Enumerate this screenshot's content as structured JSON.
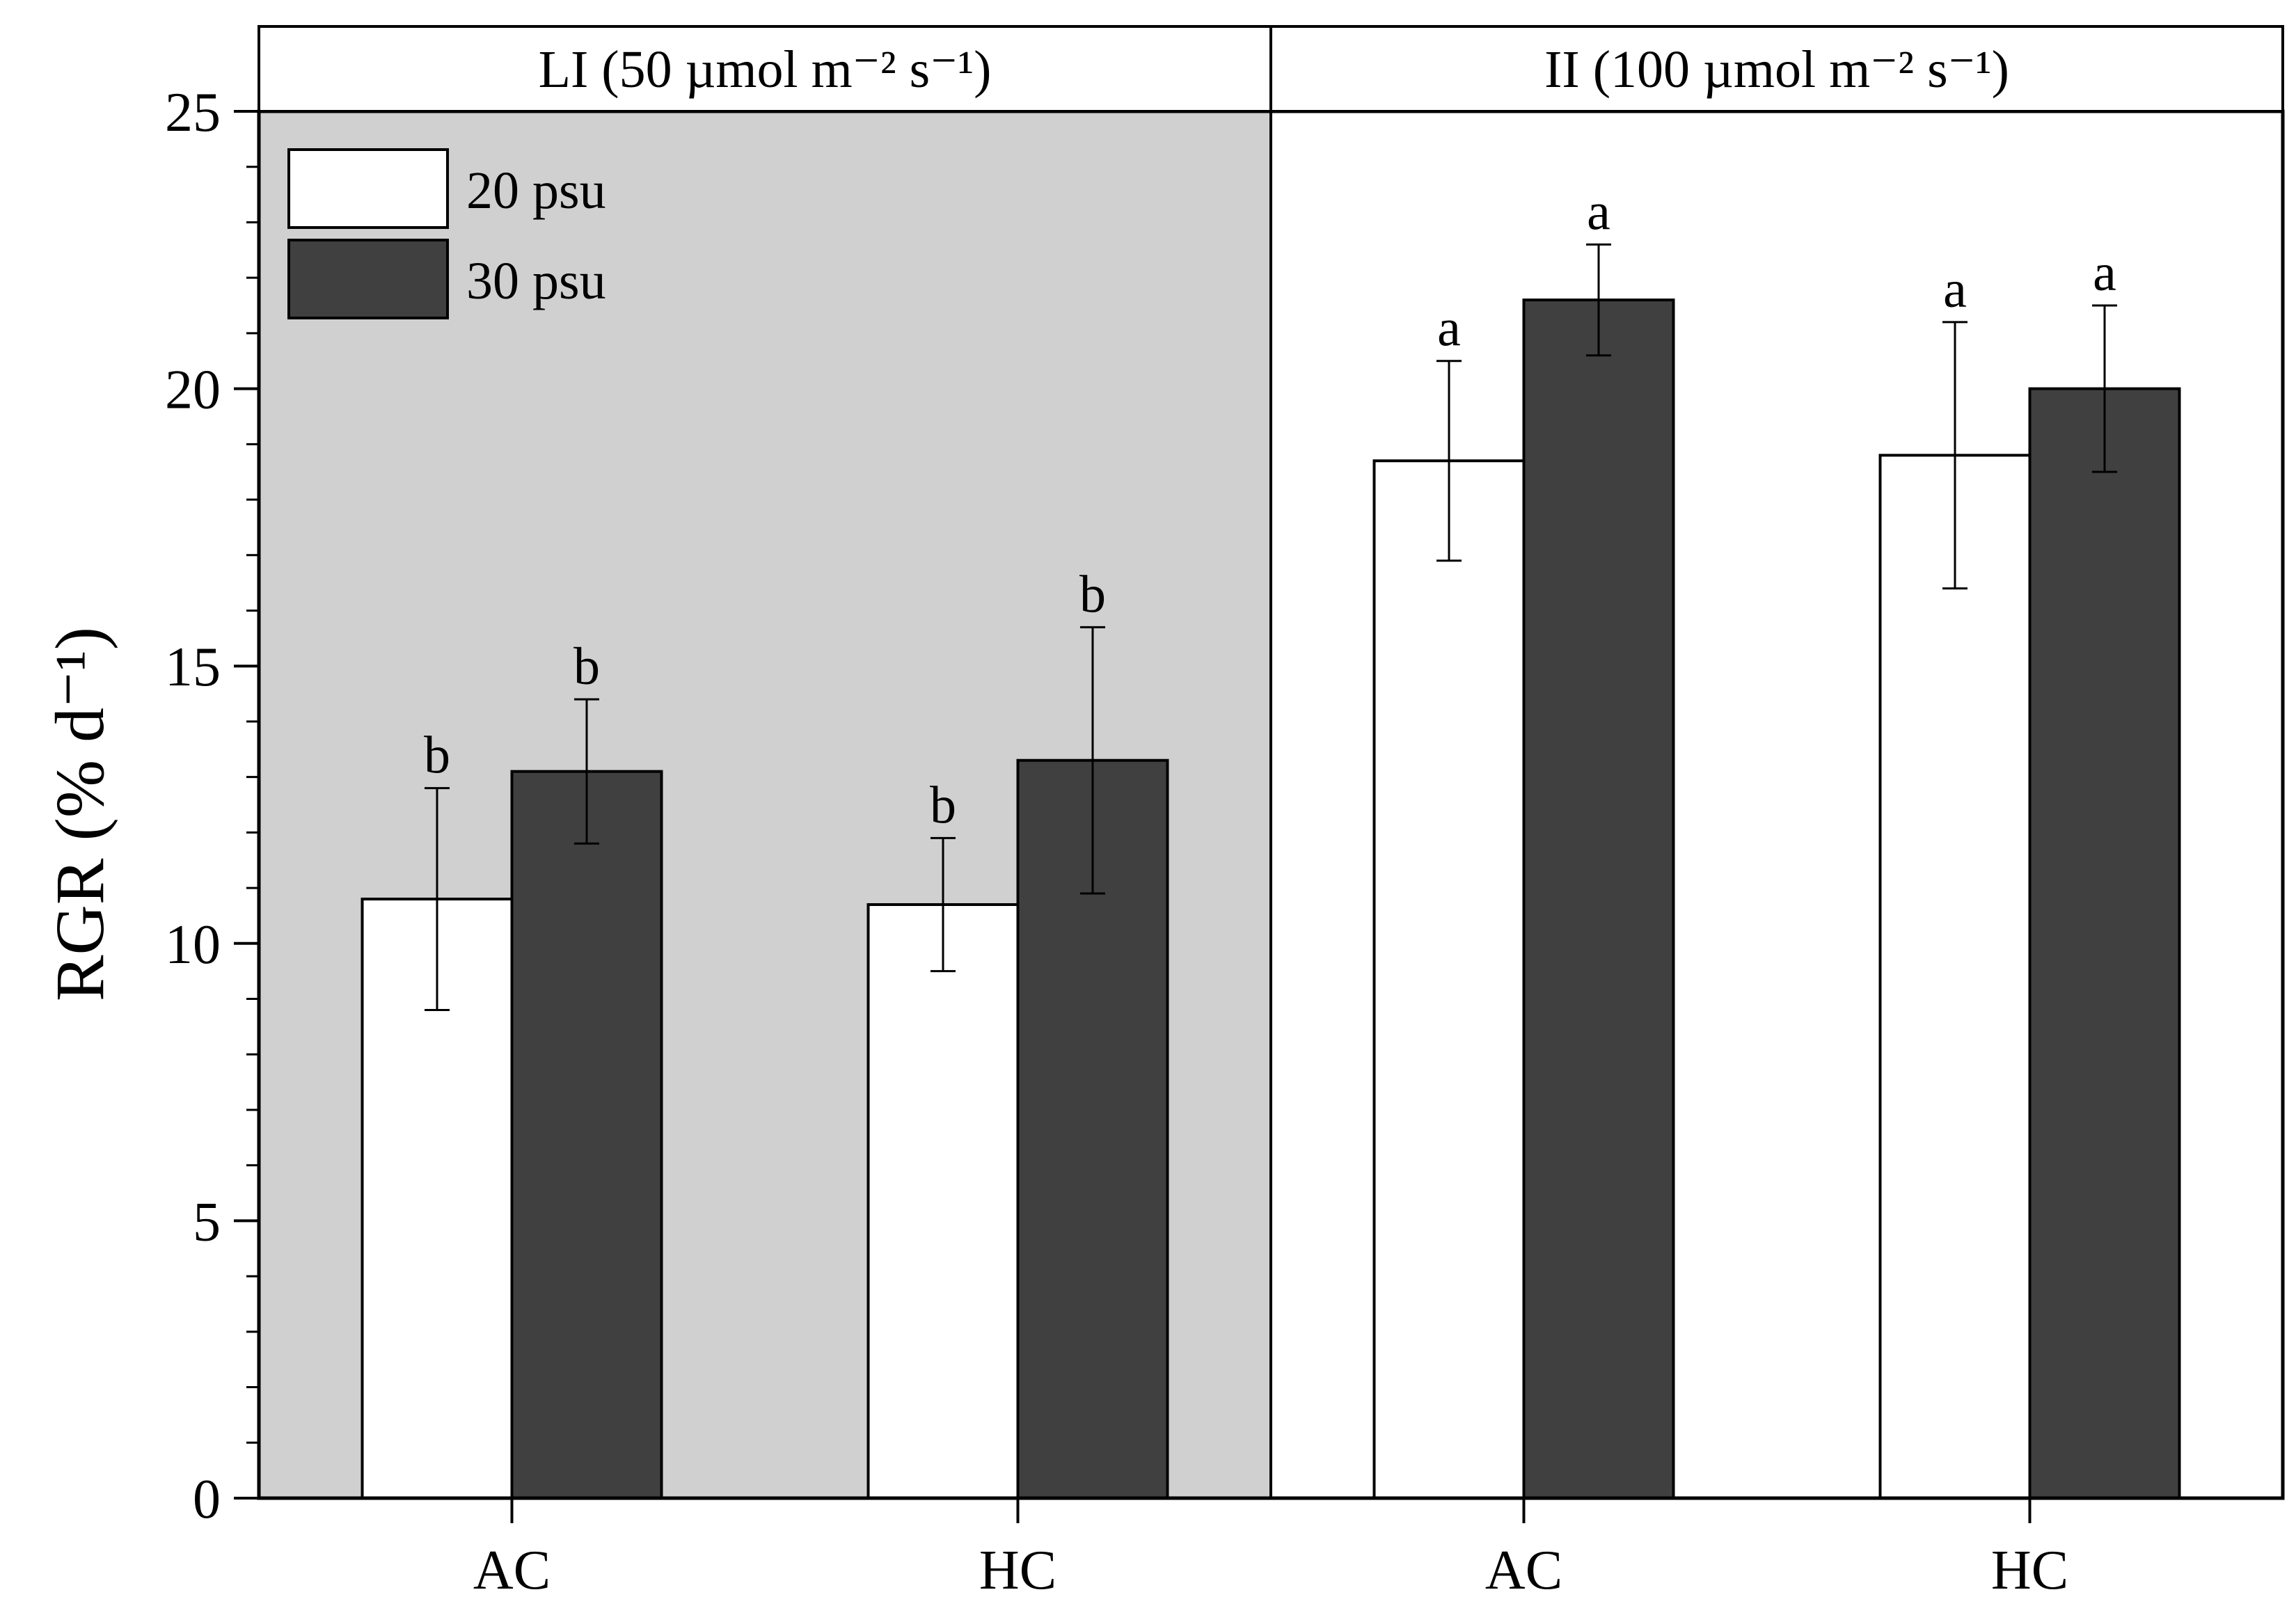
{
  "chart_data": {
    "type": "bar",
    "ylabel": "RGR (% d⁻¹)",
    "ylim": [
      0,
      25
    ],
    "yticks": [
      0,
      5,
      10,
      15,
      20,
      25
    ],
    "legend": {
      "position": "top-left",
      "entries": [
        {
          "name": "20 psu",
          "color": "#ffffff"
        },
        {
          "name": "30 psu",
          "color": "#404040"
        }
      ]
    },
    "panels": [
      {
        "label": "LI (50 µmol m⁻² s⁻¹)",
        "shaded": true,
        "categories": [
          "AC",
          "HC"
        ],
        "series": [
          {
            "name": "20 psu",
            "values": [
              10.8,
              10.7
            ],
            "errors": [
              2.0,
              1.2
            ],
            "letters": [
              "b",
              "b"
            ]
          },
          {
            "name": "30 psu",
            "values": [
              13.1,
              13.3
            ],
            "errors": [
              1.3,
              2.4
            ],
            "letters": [
              "b",
              "b"
            ]
          }
        ]
      },
      {
        "label": "II (100 µmol m⁻² s⁻¹)",
        "shaded": false,
        "categories": [
          "AC",
          "HC"
        ],
        "series": [
          {
            "name": "20 psu",
            "values": [
              18.7,
              18.8
            ],
            "errors": [
              1.8,
              2.4
            ],
            "letters": [
              "a",
              "a"
            ]
          },
          {
            "name": "30 psu",
            "values": [
              21.6,
              20.0
            ],
            "errors": [
              1.0,
              1.5
            ],
            "letters": [
              "a",
              "a"
            ]
          }
        ]
      }
    ]
  },
  "colors": {
    "shade": "#d0d0d0",
    "bar_light": "#ffffff",
    "bar_dark": "#404040",
    "axis": "#000000"
  }
}
